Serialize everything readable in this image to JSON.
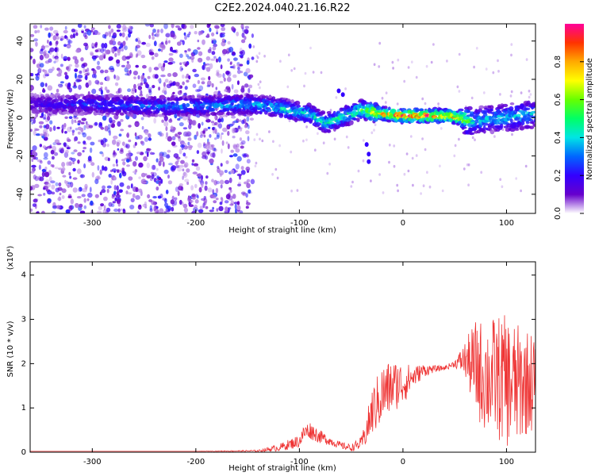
{
  "title": "C2E2.2024.040.21.16.R22",
  "chart_data": [
    {
      "type": "heatmap",
      "xlabel": "Height of straight line (km)",
      "ylabel": "Frequency (Hz)",
      "xlim": [
        -360,
        128
      ],
      "ylim": [
        -50,
        49
      ],
      "x_ticks": [
        -300,
        -200,
        -100,
        0,
        100
      ],
      "y_ticks": [
        -40,
        -20,
        0,
        20,
        40
      ],
      "colorbar": {
        "label": "Normalized spectral amplitude",
        "range": [
          0,
          1
        ],
        "ticks": [
          "0.0",
          "0.2",
          "0.4",
          "0.6",
          "0.8"
        ],
        "tick_values": [
          0,
          0.2,
          0.4,
          0.6,
          0.8
        ],
        "colors": [
          "#ffffff",
          "#6600cc",
          "#3300ff",
          "#0066ff",
          "#00e5e5",
          "#00ff66",
          "#66ff00",
          "#ffff00",
          "#ffaa00",
          "#ff3300",
          "#ff0099"
        ]
      },
      "band_center": {
        "x": [
          -360,
          -300,
          -250,
          -200,
          -150,
          -130,
          -110,
          -90,
          -75,
          -60,
          -40,
          -20,
          0,
          20,
          40,
          55,
          65,
          80,
          100,
          128
        ],
        "y": [
          7,
          7,
          6,
          6,
          7,
          6,
          4,
          2,
          -3,
          0,
          4,
          2,
          1,
          1,
          1,
          0,
          -2,
          -1,
          0,
          2
        ]
      },
      "band_peak_amplitude": {
        "x": [
          -360,
          -280,
          -200,
          -150,
          -100,
          -80,
          -50,
          -20,
          0,
          20,
          40,
          55,
          70,
          100,
          128
        ],
        "y": [
          0.2,
          0.3,
          0.35,
          0.4,
          0.45,
          0.5,
          0.5,
          0.85,
          0.95,
          0.95,
          0.9,
          0.85,
          0.4,
          0.45,
          0.4
        ]
      },
      "noise_region": {
        "x_from": -360,
        "x_to": -145
      }
    },
    {
      "type": "line",
      "xlabel": "Height of straight line (km)",
      "ylabel": "SNR (10 * v/v)",
      "y_multiplier": "(x10⁴)",
      "xlim": [
        -360,
        128
      ],
      "ylim": [
        0,
        4.3
      ],
      "x_ticks": [
        -300,
        -200,
        -100,
        0,
        100
      ],
      "y_ticks": [
        0,
        1,
        2,
        3,
        4
      ],
      "color": "#ee3333",
      "series": [
        {
          "x": [
            -360,
            -300,
            -200,
            -140,
            -120,
            -100,
            -95,
            -90,
            -80,
            -70,
            -60,
            -50,
            -40,
            -35,
            -30,
            -20,
            -10,
            0,
            10,
            20,
            30,
            40,
            50,
            60,
            70,
            80,
            90,
            100,
            110,
            120,
            128
          ],
          "y": [
            0.02,
            0.02,
            0.02,
            0.03,
            0.1,
            0.25,
            0.45,
            0.5,
            0.35,
            0.25,
            0.15,
            0.1,
            0.2,
            0.5,
            0.9,
            1.3,
            1.5,
            1.55,
            1.7,
            1.85,
            1.88,
            1.9,
            2.0,
            2.1,
            1.9,
            1.7,
            1.7,
            1.6,
            1.5,
            1.6,
            1.6
          ],
          "spread": [
            0,
            0,
            0,
            0.02,
            0.08,
            0.15,
            0.2,
            0.2,
            0.15,
            0.1,
            0.08,
            0.08,
            0.15,
            0.35,
            0.55,
            0.7,
            0.6,
            0.5,
            0.25,
            0.15,
            0.08,
            0.05,
            0.08,
            0.4,
            1.1,
            1.3,
            1.4,
            1.5,
            1.4,
            1.2,
            1.1
          ]
        }
      ]
    }
  ]
}
